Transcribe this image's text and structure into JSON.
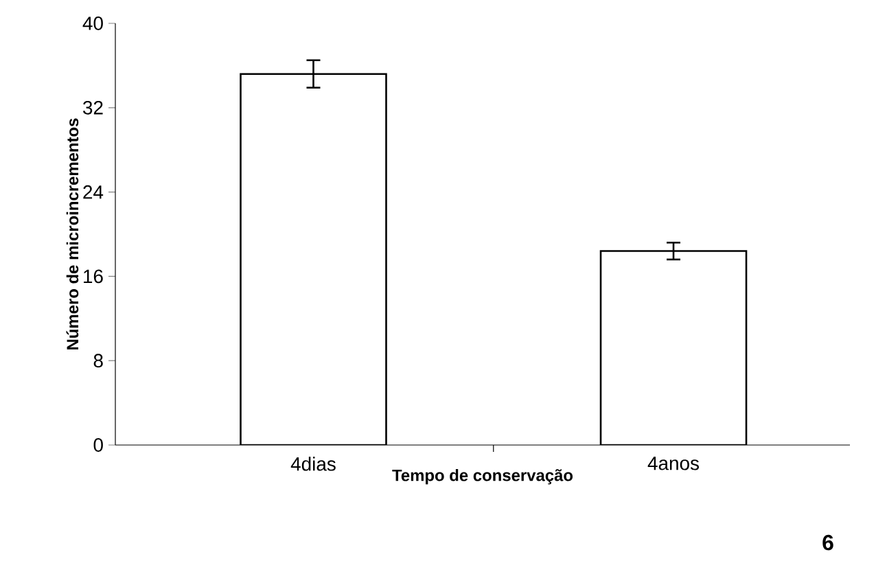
{
  "chart_data": {
    "type": "bar",
    "xlabel": "Tempo de conservação",
    "ylabel": "Número de microincrementos",
    "categories": [
      "4dias",
      "4anos"
    ],
    "values": [
      35.2,
      18.4
    ],
    "errors": [
      1.3,
      0.8
    ],
    "color": "#ffffff",
    "ylim": [
      0,
      40
    ],
    "yticks": [
      0,
      8,
      16,
      24,
      32,
      40
    ],
    "annotations": [
      "6"
    ]
  }
}
